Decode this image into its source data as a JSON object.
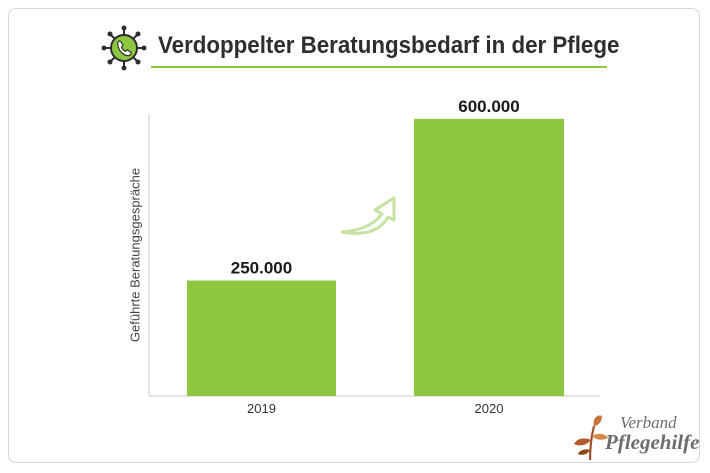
{
  "header": {
    "title": "Verdoppelter Beratungsbedarf in der Pflege",
    "icon": "virus-phone-icon"
  },
  "logo": {
    "line1": "Verband",
    "line2": "Pflegehilfe",
    "icon": "leaf-sprout-icon"
  },
  "colors": {
    "bar": "#8dc63f",
    "accent": "#8dc63f",
    "arrow": "#c5e2a0"
  },
  "chart_data": {
    "type": "bar",
    "title": "Verdoppelter Beratungsbedarf in der Pflege",
    "xlabel": "",
    "ylabel": "Geführte Beratungsgespräche",
    "categories": [
      "2019",
      "2020"
    ],
    "values": [
      250000,
      600000
    ],
    "data_labels": [
      "250.000",
      "600.000"
    ],
    "ylim": [
      0,
      630000
    ],
    "grid": false,
    "legend": "none"
  }
}
